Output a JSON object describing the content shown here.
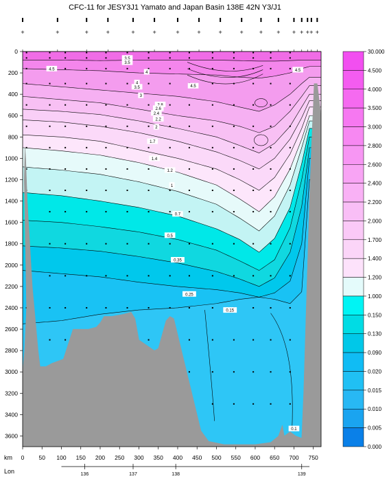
{
  "chart_data": {
    "type": "heatmap",
    "title": "CFC-11 for JESY3J1 Yamato and Japan Basin 138E 42N Y3/J1",
    "x_axis_label": "km",
    "x_ticks": [
      0,
      50,
      100,
      150,
      200,
      250,
      300,
      350,
      400,
      450,
      500,
      550,
      600,
      650,
      700,
      750
    ],
    "xlim": [
      0,
      770
    ],
    "lon_axis_label": "Lon",
    "lon_ticks": [
      {
        "km": 160,
        "lon": "136"
      },
      {
        "km": 285,
        "lon": "137"
      },
      {
        "km": 395,
        "lon": "138"
      },
      {
        "km": 720,
        "lon": "139"
      }
    ],
    "y_ticks": [
      0,
      200,
      400,
      600,
      800,
      1000,
      1200,
      1400,
      1600,
      1800,
      2000,
      2200,
      2400,
      2600,
      2800,
      3000,
      3200,
      3400,
      3600
    ],
    "ylim": [
      0,
      3700
    ],
    "y_inverted": true,
    "colorbar_levels": [
      "30.000",
      "4.500",
      "4.000",
      "3.500",
      "3.000",
      "2.800",
      "2.600",
      "2.400",
      "2.200",
      "2.000",
      "1.700",
      "1.400",
      "1.200",
      "1.000",
      "0.150",
      "0.130",
      "0.090",
      "0.020",
      "0.015",
      "0.010",
      "0.005",
      "0.000"
    ],
    "contour_labels": [
      {
        "text": "4.5",
        "km": 75,
        "depth": 160
      },
      {
        "text": "3.5",
        "km": 270,
        "depth": 60
      },
      {
        "text": "3.5",
        "km": 270,
        "depth": 100
      },
      {
        "text": "4",
        "km": 320,
        "depth": 190
      },
      {
        "text": "4",
        "km": 295,
        "depth": 290
      },
      {
        "text": "3.5",
        "km": 295,
        "depth": 330
      },
      {
        "text": "4.5",
        "km": 440,
        "depth": 320
      },
      {
        "text": "3",
        "km": 305,
        "depth": 410
      },
      {
        "text": "2.8",
        "km": 355,
        "depth": 495
      },
      {
        "text": "2.6",
        "km": 350,
        "depth": 530
      },
      {
        "text": "2.4",
        "km": 345,
        "depth": 575
      },
      {
        "text": "2.2",
        "km": 350,
        "depth": 630
      },
      {
        "text": "2",
        "km": 345,
        "depth": 705
      },
      {
        "text": "1.7",
        "km": 335,
        "depth": 840
      },
      {
        "text": "1.4",
        "km": 340,
        "depth": 1000
      },
      {
        "text": "1.2",
        "km": 380,
        "depth": 1110
      },
      {
        "text": "1",
        "km": 385,
        "depth": 1250
      },
      {
        "text": "0.7",
        "km": 400,
        "depth": 1520
      },
      {
        "text": "0.5",
        "km": 380,
        "depth": 1720
      },
      {
        "text": "0.35",
        "km": 400,
        "depth": 1950
      },
      {
        "text": "0.25",
        "km": 430,
        "depth": 2270
      },
      {
        "text": "0.15",
        "km": 535,
        "depth": 2420
      },
      {
        "text": "4.5",
        "km": 710,
        "depth": 170
      },
      {
        "text": "0.1",
        "km": 700,
        "depth": 3530
      }
    ],
    "contour_depths_at_km": {
      "km": [
        0,
        100,
        200,
        300,
        400,
        500,
        560,
        610,
        650,
        690,
        720,
        740
      ],
      "c4_5": [
        80,
        80,
        85,
        80,
        80,
        80,
        85,
        90,
        90,
        85,
        80,
        80
      ],
      "c4_0": [
        160,
        170,
        180,
        200,
        210,
        220,
        240,
        250,
        230,
        200,
        160,
        140
      ],
      "c3_0": [
        300,
        330,
        360,
        390,
        420,
        470,
        520,
        560,
        500,
        400,
        300,
        240
      ],
      "c2_4": [
        420,
        450,
        480,
        540,
        600,
        650,
        700,
        760,
        700,
        560,
        420,
        320
      ],
      "c2_0": [
        540,
        560,
        590,
        650,
        720,
        800,
        880,
        950,
        860,
        700,
        520,
        400
      ],
      "c1_7": [
        640,
        660,
        700,
        760,
        840,
        940,
        1020,
        1100,
        1000,
        820,
        620,
        460
      ],
      "c1_4": [
        780,
        800,
        840,
        920,
        1000,
        1100,
        1200,
        1300,
        1180,
        960,
        720,
        520
      ],
      "c1_2": [
        900,
        930,
        970,
        1040,
        1130,
        1250,
        1380,
        1500,
        1360,
        1100,
        820,
        600
      ],
      "c1_0": [
        1080,
        1110,
        1150,
        1220,
        1310,
        1430,
        1560,
        1680,
        1540,
        1250,
        900,
        650
      ],
      "c0_7": [
        1320,
        1350,
        1400,
        1460,
        1540,
        1660,
        1760,
        1880,
        1750,
        1460,
        1050,
        720
      ],
      "c0_5": [
        1580,
        1600,
        1640,
        1690,
        1760,
        1860,
        1960,
        2050,
        1950,
        1650,
        1200,
        800
      ],
      "c0_35": [
        1820,
        1840,
        1870,
        1920,
        1980,
        2060,
        2130,
        2200,
        2120,
        1880,
        1450,
        900
      ],
      "c0_25": [
        2050,
        2080,
        2110,
        2160,
        2200,
        2230,
        2260,
        2300,
        2260,
        2150,
        1800,
        1000
      ],
      "c0_15": [
        2550,
        2520,
        2460,
        2420,
        2400,
        2360,
        2320,
        2300,
        2320,
        2360,
        2250,
        1200
      ]
    }
  }
}
